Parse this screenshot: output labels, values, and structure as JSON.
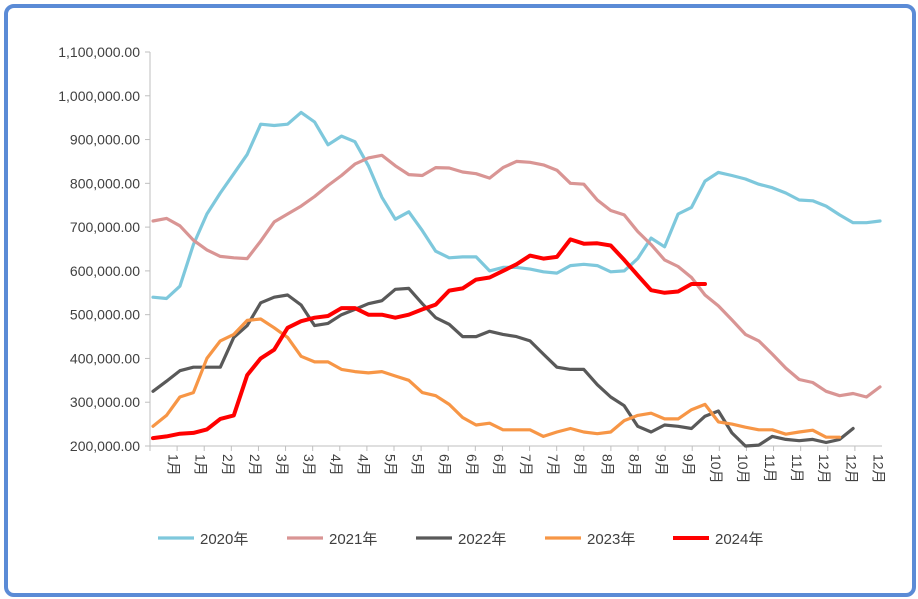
{
  "chart_data": {
    "type": "line",
    "title": "",
    "xlabel": "",
    "ylabel": "",
    "ylim": [
      200000,
      1100000
    ],
    "y_ticks": [
      "200,000.00",
      "300,000.00",
      "400,000.00",
      "500,000.00",
      "600,000.00",
      "700,000.00",
      "800,000.00",
      "900,000.00",
      "1,000,000.00",
      "1,100,000.00"
    ],
    "x_ticks": [
      "1月",
      "1月",
      "2月",
      "2月",
      "3月",
      "3月",
      "4月",
      "4月",
      "5月",
      "5月",
      "6月",
      "6月",
      "6月",
      "7月",
      "7月",
      "8月",
      "8月",
      "8月",
      "9月",
      "9月",
      "10月",
      "10月",
      "11月",
      "11月",
      "12月",
      "12月",
      "12月"
    ],
    "grid": false,
    "legend_position": "bottom",
    "series": [
      {
        "name": "2020年",
        "color": "#7ec8dc",
        "values": [
          540000,
          537000,
          565000,
          660000,
          730000,
          778000,
          822000,
          866000,
          935000,
          932000,
          935000,
          962000,
          940000,
          888000,
          908000,
          895000,
          840000,
          768000,
          718000,
          735000,
          692000,
          645000,
          630000,
          632000,
          632000,
          600000,
          608000,
          608000,
          604000,
          598000,
          595000,
          612000,
          615000,
          612000,
          598000,
          600000,
          628000,
          675000,
          655000,
          730000,
          745000,
          805000,
          825000,
          818000,
          810000,
          798000,
          790000,
          778000,
          762000,
          760000,
          748000,
          728000,
          710000,
          710000,
          714000
        ]
      },
      {
        "name": "2021年",
        "color": "#d99594",
        "values": [
          714000,
          720000,
          703000,
          670000,
          648000,
          633000,
          630000,
          628000,
          668000,
          712000,
          730000,
          748000,
          770000,
          795000,
          818000,
          844000,
          858000,
          864000,
          840000,
          820000,
          818000,
          836000,
          835000,
          826000,
          822000,
          812000,
          836000,
          850000,
          848000,
          842000,
          830000,
          800000,
          798000,
          762000,
          738000,
          728000,
          690000,
          660000,
          625000,
          610000,
          585000,
          545000,
          520000,
          488000,
          455000,
          440000,
          410000,
          378000,
          352000,
          345000,
          325000,
          315000,
          320000,
          312000,
          335000
        ]
      },
      {
        "name": "2022年",
        "color": "#595959",
        "values": [
          325000,
          348000,
          372000,
          380000,
          380000,
          380000,
          448000,
          475000,
          527000,
          540000,
          545000,
          522000,
          475000,
          480000,
          500000,
          512000,
          525000,
          532000,
          558000,
          560000,
          525000,
          493000,
          478000,
          450000,
          450000,
          462000,
          455000,
          450000,
          440000,
          410000,
          380000,
          375000,
          375000,
          340000,
          312000,
          292000,
          245000,
          232000,
          248000,
          245000,
          240000,
          268000,
          280000,
          230000,
          200000,
          202000,
          222000,
          215000,
          212000,
          215000,
          208000,
          215000,
          240000
        ]
      },
      {
        "name": "2023年",
        "color": "#f79646",
        "values": [
          245000,
          270000,
          312000,
          322000,
          400000,
          440000,
          455000,
          487000,
          490000,
          470000,
          448000,
          405000,
          392000,
          392000,
          375000,
          370000,
          367000,
          370000,
          360000,
          350000,
          322000,
          315000,
          295000,
          265000,
          248000,
          252000,
          237000,
          237000,
          237000,
          222000,
          232000,
          240000,
          232000,
          228000,
          232000,
          258000,
          270000,
          275000,
          262000,
          262000,
          283000,
          295000,
          255000,
          250000,
          243000,
          237000,
          237000,
          227000,
          232000,
          236000,
          220000,
          220000
        ]
      },
      {
        "name": "2024年",
        "color": "#ff0000",
        "values": [
          218000,
          222000,
          228000,
          230000,
          238000,
          262000,
          270000,
          362000,
          400000,
          420000,
          470000,
          485000,
          493000,
          497000,
          515000,
          515000,
          500000,
          500000,
          493000,
          500000,
          512000,
          523000,
          555000,
          560000,
          580000,
          585000,
          600000,
          615000,
          635000,
          628000,
          632000,
          672000,
          662000,
          663000,
          658000,
          625000,
          590000,
          556000,
          550000,
          553000,
          570000,
          570000
        ]
      }
    ]
  }
}
